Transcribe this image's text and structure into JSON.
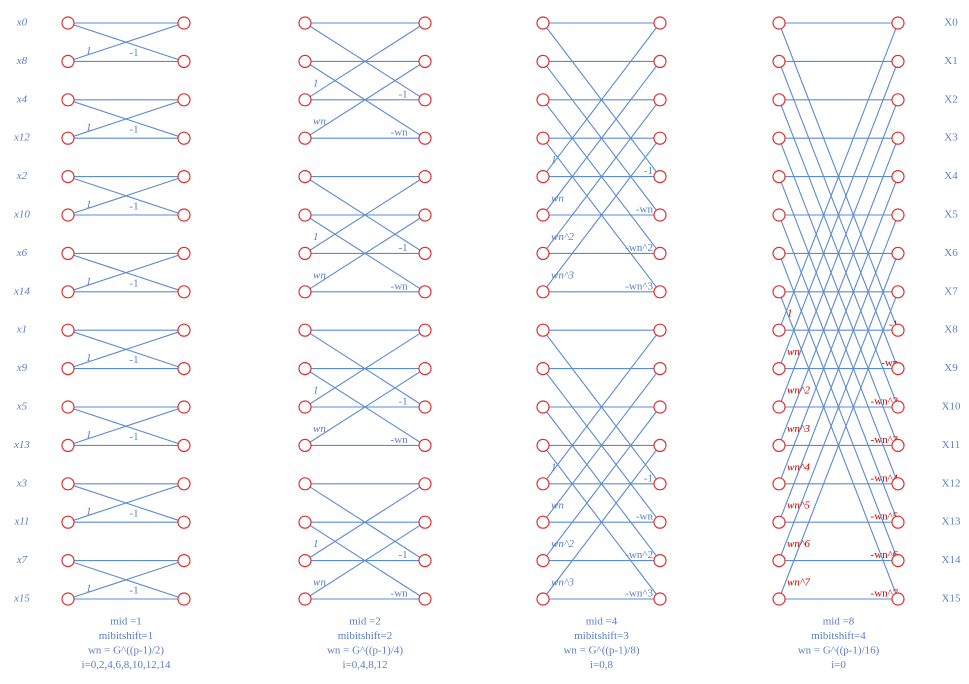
{
  "inputs": [
    "x0",
    "x8",
    "x4",
    "x12",
    "x2",
    "x10",
    "x6",
    "x14",
    "x1",
    "x9",
    "x5",
    "x13",
    "x3",
    "x11",
    "x7",
    "x15"
  ],
  "outputs": [
    "X0",
    "X1",
    "X2",
    "X3",
    "X4",
    "X5",
    "X6",
    "X7",
    "X8",
    "X9",
    "X10",
    "X11",
    "X12",
    "X13",
    "X14",
    "X15"
  ],
  "stages": [
    {
      "twiddles": [
        "1"
      ],
      "neg_twiddles": [
        "-1"
      ],
      "label_color": "#5b7fc7",
      "info": [
        "mid =1",
        "mibitshift=1",
        "wn = G^((p-1)/2)",
        "i=0,2,4,6,8,10,12,14"
      ]
    },
    {
      "twiddles": [
        "1",
        "wn"
      ],
      "neg_twiddles": [
        "-1",
        "-wn"
      ],
      "label_color": "#5b7fc7",
      "info": [
        "mid =2",
        "mibitshift=2",
        "wn = G^((p-1)/4)",
        "i=0,4,8,12"
      ]
    },
    {
      "twiddles": [
        "1",
        "wn",
        "wn^2",
        "wn^3"
      ],
      "neg_twiddles": [
        "-1",
        "-wn",
        "-wn^2",
        "-wn^3"
      ],
      "label_color": "#5b7fc7",
      "info": [
        "mid =4",
        "mibitshift=3",
        "wn = G^((p-1)/8)",
        "i=0,8"
      ]
    },
    {
      "twiddles": [
        "1",
        "wn",
        "wn^2",
        "wn^3",
        "wn^4",
        "wn^5",
        "wn^6",
        "wn^7"
      ],
      "neg_twiddles": [
        "-1",
        "-wn",
        "-wn^2",
        "-wn^3",
        "-wn^4",
        "-wn^5",
        "-wn^6",
        "-wn^7"
      ],
      "label_color": "#cc0000",
      "info": [
        "mid =8",
        "mibitshift=4",
        "wn = G^((p-1)/16)",
        "i=0"
      ]
    }
  ]
}
